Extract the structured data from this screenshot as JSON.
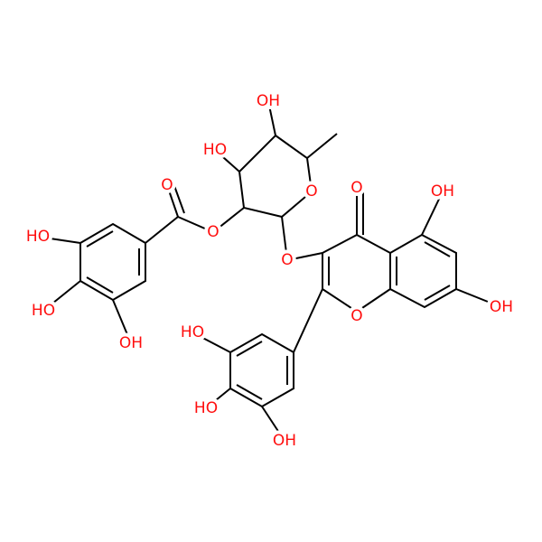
{
  "atoms": [
    "OH",
    "HO",
    "O",
    "O",
    "O",
    "HO",
    "HO",
    "OH",
    "O",
    "O",
    "OH",
    "OH",
    "O",
    "HO",
    "HO",
    "OH"
  ]
}
